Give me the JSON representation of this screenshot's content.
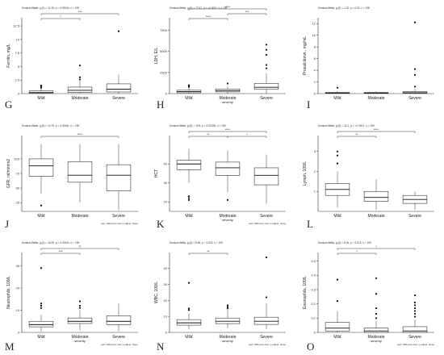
{
  "figure": {
    "background": "#ffffff",
    "box_fill": "#ffffff",
    "box_stroke": "#333333",
    "point_color": "#111111"
  },
  "chart_data": [
    {
      "letter": "G",
      "type": "box",
      "subtitle": "Kruskal-Wallis, χ²(2) = 11.35, p = 0.00034, n = 159",
      "ylabel": "Ferritin, mg/L",
      "xlabel": "",
      "categories": [
        "Mild",
        "Moderate",
        "Severe"
      ],
      "yticks": [
        0,
        2.5,
        5,
        7.5,
        10,
        12.5
      ],
      "ylim": [
        0,
        14
      ],
      "boxes": [
        {
          "q1": 0.1,
          "median": 0.2,
          "q3": 0.5,
          "whisker_low": 0,
          "whisker_high": 1.0,
          "outliers": [
            1.1,
            1.3,
            1.5
          ]
        },
        {
          "q1": 0.2,
          "median": 0.6,
          "q3": 1.2,
          "whisker_low": 0,
          "whisker_high": 2.3,
          "outliers": [
            2.6,
            3.0,
            5.2
          ]
        },
        {
          "q1": 0.3,
          "median": 0.8,
          "q3": 1.8,
          "whisker_low": 0,
          "whisker_high": 3.5,
          "outliers": [
            11.5
          ]
        }
      ],
      "brackets": [
        {
          "from": 0,
          "to": 1,
          "level": 1,
          "label": "*"
        },
        {
          "from": 0,
          "to": 2,
          "level": 2,
          "label": "***"
        }
      ],
      "footnote": ""
    },
    {
      "letter": "H",
      "type": "box",
      "subtitle": "Kruskal-Wallis, χ²(2) = 77.67, p = <0.0001, n = 159",
      "ylabel": "LDH, E/L",
      "xlabel": "severity",
      "categories": [
        "Mild",
        "Moderate",
        "Severe"
      ],
      "yticks": [
        0,
        2500,
        5000,
        7500
      ],
      "ylim": [
        0,
        9000
      ],
      "boxes": [
        {
          "q1": 100,
          "median": 250,
          "q3": 400,
          "whisker_low": 0,
          "whisker_high": 700,
          "outliers": [
            800,
            900,
            1000
          ]
        },
        {
          "q1": 200,
          "median": 350,
          "q3": 550,
          "whisker_low": 0,
          "whisker_high": 850,
          "outliers": [
            1200
          ]
        },
        {
          "q1": 500,
          "median": 750,
          "q3": 1200,
          "whisker_low": 0,
          "whisker_high": 2400,
          "outliers": [
            3000,
            3400,
            4600,
            5200,
            5800
          ]
        }
      ],
      "brackets": [
        {
          "from": 0,
          "to": 1,
          "level": 1,
          "label": "****"
        },
        {
          "from": 1,
          "to": 2,
          "level": 2,
          "label": "***"
        },
        {
          "from": 0,
          "to": 2,
          "level": 3,
          "label": "****"
        }
      ],
      "footnote": ""
    },
    {
      "letter": "I",
      "type": "box",
      "subtitle": "Kruskal-Wallis, χ²(2) = 1.32, p = 0.52, n = 159",
      "ylabel": "Procalcitonin , mg/mL",
      "xlabel": "",
      "categories": [
        "Mild",
        "Moderate",
        "Severe"
      ],
      "yticks": [
        0,
        2,
        4,
        6,
        8,
        10,
        12
      ],
      "ylim": [
        0,
        13
      ],
      "boxes": [
        {
          "q1": 0.05,
          "median": 0.1,
          "q3": 0.2,
          "whisker_low": 0,
          "whisker_high": 0.4,
          "outliers": [
            1.0
          ]
        },
        {
          "q1": 0.05,
          "median": 0.1,
          "q3": 0.2,
          "whisker_low": 0,
          "whisker_high": 0.4,
          "outliers": []
        },
        {
          "q1": 0.05,
          "median": 0.15,
          "q3": 0.35,
          "whisker_low": 0,
          "whisker_high": 0.8,
          "outliers": [
            1.2,
            3.2,
            4.2,
            12.2
          ]
        }
      ],
      "brackets": [],
      "footnote": ""
    },
    {
      "letter": "J",
      "type": "box",
      "subtitle": "Kruskal-Wallis, χ²(2) = 14.79, p = 0.00061, n = 159",
      "ylabel": "GFR, ml/min/m2",
      "xlabel": "",
      "categories": [
        "Mild",
        "Moderate",
        "Severe"
      ],
      "yticks": [
        25,
        50,
        75,
        100
      ],
      "ylim": [
        10,
        140
      ],
      "boxes": [
        {
          "q1": 70,
          "median": 88,
          "q3": 100,
          "whisker_low": 40,
          "whisker_high": 125,
          "outliers": [
            20
          ]
        },
        {
          "q1": 60,
          "median": 72,
          "q3": 95,
          "whisker_low": 25,
          "whisker_high": 125,
          "outliers": []
        },
        {
          "q1": 45,
          "median": 72,
          "q3": 90,
          "whisker_low": 12,
          "whisker_high": 125,
          "outliers": []
        }
      ],
      "brackets": [
        {
          "from": 0,
          "to": 2,
          "level": 1,
          "label": "****"
        }
      ],
      "footnote": "pwc: Wilcoxon test; p.adjust: None"
    },
    {
      "letter": "K",
      "type": "box",
      "subtitle": "Kruskal-Wallis, χ²(2) = 19.5, p = 0.00028, n = 159",
      "ylabel": "HCT",
      "xlabel": "severity",
      "categories": [
        "Mild",
        "Moderate",
        "Severe"
      ],
      "yticks": [
        20,
        30,
        40
      ],
      "ylim": [
        15,
        55
      ],
      "boxes": [
        {
          "q1": 37,
          "median": 40,
          "q3": 42,
          "whisker_low": 30,
          "whisker_high": 48,
          "outliers": [
            21,
            22,
            23
          ]
        },
        {
          "q1": 34,
          "median": 38,
          "q3": 41,
          "whisker_low": 25,
          "whisker_high": 47,
          "outliers": [
            21
          ]
        },
        {
          "q1": 29,
          "median": 34,
          "q3": 38,
          "whisker_low": 19,
          "whisker_high": 45,
          "outliers": []
        }
      ],
      "brackets": [
        {
          "from": 0,
          "to": 1,
          "level": 1,
          "label": "**"
        },
        {
          "from": 1,
          "to": 2,
          "level": 1,
          "label": "*"
        },
        {
          "from": 0,
          "to": 2,
          "level": 2,
          "label": "****"
        }
      ],
      "footnote": "pwc: Wilcoxon test; p.adjust: None"
    },
    {
      "letter": "L",
      "type": "box",
      "subtitle": "Kruskal-Wallis, χ²(2) = 32.1, p = <0.0001, n = 159",
      "ylabel": "Lymph, 109/L",
      "xlabel": "",
      "categories": [
        "Mild",
        "Moderate",
        "Severe"
      ],
      "yticks": [
        1,
        2,
        3
      ],
      "ylim": [
        0,
        3.8
      ],
      "boxes": [
        {
          "q1": 0.8,
          "median": 1.1,
          "q3": 1.4,
          "whisker_low": 0.2,
          "whisker_high": 2.0,
          "outliers": [
            2.4,
            2.8,
            3.0
          ]
        },
        {
          "q1": 0.5,
          "median": 0.7,
          "q3": 1.0,
          "whisker_low": 0.1,
          "whisker_high": 1.6,
          "outliers": []
        },
        {
          "q1": 0.4,
          "median": 0.6,
          "q3": 0.8,
          "whisker_low": 0.1,
          "whisker_high": 1.0,
          "outliers": []
        }
      ],
      "brackets": [
        {
          "from": 0,
          "to": 1,
          "level": 1,
          "label": "**"
        },
        {
          "from": 0,
          "to": 2,
          "level": 2,
          "label": "****"
        }
      ],
      "footnote": ""
    },
    {
      "letter": "M",
      "type": "box",
      "subtitle": "Kruskal-Wallis, χ²(2) = 15.53, p = 0.00042, n = 159",
      "ylabel": "Neutrophils, 109/L",
      "xlabel": "severity",
      "categories": [
        "Mild",
        "Moderate",
        "Severe"
      ],
      "yticks": [
        0,
        10,
        20,
        30
      ],
      "ylim": [
        0,
        36
      ],
      "boxes": [
        {
          "q1": 2.5,
          "median": 3.5,
          "q3": 5,
          "whisker_low": 0.5,
          "whisker_high": 8,
          "outliers": [
            11,
            12,
            13,
            29
          ]
        },
        {
          "q1": 4,
          "median": 5,
          "q3": 6.5,
          "whisker_low": 1,
          "whisker_high": 10,
          "outliers": [
            11,
            12,
            14
          ]
        },
        {
          "q1": 3.5,
          "median": 5,
          "q3": 7.5,
          "whisker_low": 0.5,
          "whisker_high": 13,
          "outliers": []
        }
      ],
      "brackets": [
        {
          "from": 0,
          "to": 1,
          "level": 1,
          "label": "***"
        },
        {
          "from": 0,
          "to": 2,
          "level": 2,
          "label": "**"
        }
      ],
      "footnote": "pwc: Wilcoxon test; p.adjust: None"
    },
    {
      "letter": "N",
      "type": "box",
      "subtitle": "Kruskal-Wallis, χ²(2) = 6.85, p = 0.032, n = 159",
      "ylabel": "WBC, 109/L",
      "xlabel": "severity",
      "categories": [
        "Mild",
        "Moderate",
        "Severe"
      ],
      "yticks": [
        0,
        10,
        20,
        30,
        40
      ],
      "ylim": [
        0,
        50
      ],
      "boxes": [
        {
          "q1": 4.5,
          "median": 6,
          "q3": 8,
          "whisker_low": 2,
          "whisker_high": 12,
          "outliers": [
            14,
            15,
            31
          ]
        },
        {
          "q1": 5.5,
          "median": 7,
          "q3": 9,
          "whisker_low": 2.5,
          "whisker_high": 14,
          "outliers": [
            15,
            16,
            17
          ]
        },
        {
          "q1": 5,
          "median": 7,
          "q3": 9.5,
          "whisker_low": 2,
          "whisker_high": 18,
          "outliers": [
            22,
            47
          ]
        }
      ],
      "brackets": [
        {
          "from": 0,
          "to": 1,
          "level": 1,
          "label": "**"
        }
      ],
      "footnote": "pwc: Wilcoxon test; p.adjust: None"
    },
    {
      "letter": "O",
      "type": "box",
      "subtitle": "Kruskal-Wallis, χ²(2) = 8.34, p = 0.015, n = 159",
      "ylabel": "Eosinophils, 109/L",
      "xlabel": "severity",
      "categories": [
        "Mild",
        "Moderate",
        "Severe"
      ],
      "yticks": [
        0.0,
        0.1,
        0.2,
        0.3,
        0.4,
        0.5
      ],
      "ylim": [
        0,
        0.56
      ],
      "boxes": [
        {
          "q1": 0.01,
          "median": 0.03,
          "q3": 0.07,
          "whisker_low": 0,
          "whisker_high": 0.15,
          "outliers": [
            0.22,
            0.37
          ]
        },
        {
          "q1": 0.0,
          "median": 0.01,
          "q3": 0.03,
          "whisker_low": 0,
          "whisker_high": 0.08,
          "outliers": [
            0.1,
            0.13,
            0.17,
            0.27,
            0.38
          ]
        },
        {
          "q1": 0.0,
          "median": 0.01,
          "q3": 0.04,
          "whisker_low": 0,
          "whisker_high": 0.09,
          "outliers": [
            0.11,
            0.13,
            0.15,
            0.17,
            0.19,
            0.21,
            0.26
          ]
        }
      ],
      "brackets": [
        {
          "from": 0,
          "to": 1,
          "level": 1,
          "label": "*"
        },
        {
          "from": 0,
          "to": 2,
          "level": 2,
          "label": "*"
        }
      ],
      "footnote": "pwc: Wilcoxon test; p.adjust: None"
    }
  ]
}
